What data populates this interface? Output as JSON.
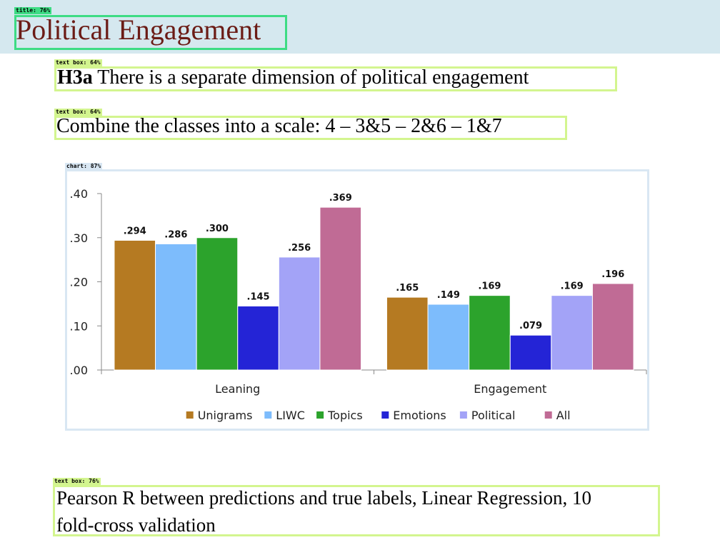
{
  "annotations": {
    "title_tag": "title: 76%",
    "text_box_tag_1": "text box: 64%",
    "text_box_tag_2": "text box: 64%",
    "chart_tag": "chart: 87%",
    "text_box_tag_3": "text box: 76%",
    "colors": {
      "title_box": "#3ddc84",
      "text_box": "#d3f58f",
      "chart_box": "#d9e7f3"
    }
  },
  "slide": {
    "title": "Political Engagement",
    "hypothesis_bold": "H3a",
    "hypothesis_text": " There is a separate dimension of political engagement",
    "scale_text": "Combine the classes into a scale: 4 – 3&5 – 2&6 – 1&7",
    "footnote_line1": "Pearson R between predictions and true labels, Linear Regression, 10",
    "footnote_line2": "fold-cross validation"
  },
  "chart_data": {
    "type": "bar",
    "categories": [
      "Leaning",
      "Engagement"
    ],
    "series": [
      {
        "name": "Unigrams",
        "color": "#b57a22",
        "values": [
          0.294,
          0.165
        ],
        "labels": [
          ".294",
          ".165"
        ]
      },
      {
        "name": "LIWC",
        "color": "#7dbcfc",
        "values": [
          0.286,
          0.149
        ],
        "labels": [
          ".286",
          ".149"
        ]
      },
      {
        "name": "Topics",
        "color": "#2ca32c",
        "values": [
          0.3,
          0.169
        ],
        "labels": [
          ".300",
          ".169"
        ]
      },
      {
        "name": "Emotions",
        "color": "#2424d6",
        "values": [
          0.145,
          0.079
        ],
        "labels": [
          ".145",
          ".079"
        ]
      },
      {
        "name": "Political",
        "color": "#a3a3f7",
        "values": [
          0.256,
          0.169
        ],
        "labels": [
          ".256",
          ".169"
        ]
      },
      {
        "name": "All",
        "color": "#c06b95",
        "values": [
          0.369,
          0.196
        ],
        "labels": [
          ".369",
          ".196"
        ]
      }
    ],
    "yticks": [
      ".00",
      ".10",
      ".20",
      ".30",
      ".40"
    ],
    "ylim": [
      0,
      0.4
    ],
    "grid": false,
    "legend": "bottom",
    "title": "",
    "xlabel": "",
    "ylabel": ""
  }
}
